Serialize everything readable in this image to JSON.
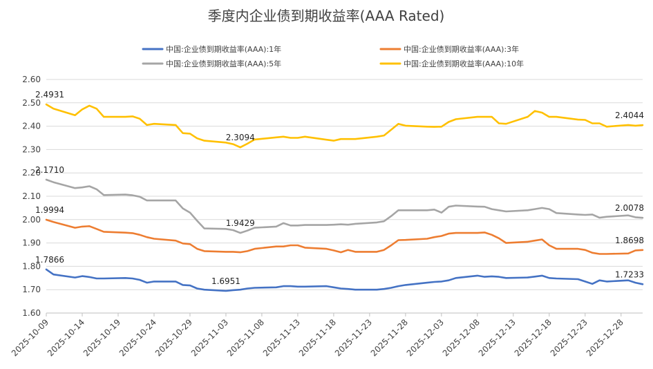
{
  "chart_data": {
    "type": "line",
    "title": "季度内企业债到期收益率(AAA Rated)",
    "xlabel": "",
    "ylabel": "",
    "ylim": [
      1.6,
      2.6
    ],
    "yticks": [
      "1.60",
      "1.70",
      "1.80",
      "1.90",
      "2.00",
      "2.10",
      "2.20",
      "2.30",
      "2.40",
      "2.50",
      "2.60"
    ],
    "x_range": [
      "2025-10-09",
      "2025-12-31"
    ],
    "xticks": [
      "2025-10-09",
      "2025-10-14",
      "2025-10-19",
      "2025-10-24",
      "2025-10-29",
      "2025-11-03",
      "2025-11-08",
      "2025-11-13",
      "2025-11-18",
      "2025-11-23",
      "2025-11-28",
      "2025-12-03",
      "2025-12-08",
      "2025-12-13",
      "2025-12-18",
      "2025-12-23",
      "2025-12-28"
    ],
    "grid": true,
    "legend": "top",
    "series": [
      {
        "name": "中国:企业债到期收益率(AAA):1年",
        "color": "#4472c4",
        "points": [
          [
            "2025-10-09",
            1.7866
          ],
          [
            "2025-10-10",
            1.765
          ],
          [
            "2025-10-13",
            1.752
          ],
          [
            "2025-10-14",
            1.758
          ],
          [
            "2025-10-15",
            1.754
          ],
          [
            "2025-10-16",
            1.748
          ],
          [
            "2025-10-17",
            1.748
          ],
          [
            "2025-10-20",
            1.75
          ],
          [
            "2025-10-21",
            1.748
          ],
          [
            "2025-10-22",
            1.742
          ],
          [
            "2025-10-23",
            1.73
          ],
          [
            "2025-10-24",
            1.735
          ],
          [
            "2025-10-27",
            1.735
          ],
          [
            "2025-10-28",
            1.72
          ],
          [
            "2025-10-29",
            1.718
          ],
          [
            "2025-10-30",
            1.705
          ],
          [
            "2025-10-31",
            1.7
          ],
          [
            "2025-11-03",
            1.6951
          ],
          [
            "2025-11-04",
            1.698
          ],
          [
            "2025-11-05",
            1.7
          ],
          [
            "2025-11-06",
            1.705
          ],
          [
            "2025-11-07",
            1.708
          ],
          [
            "2025-11-10",
            1.71
          ],
          [
            "2025-11-11",
            1.715
          ],
          [
            "2025-11-12",
            1.715
          ],
          [
            "2025-11-13",
            1.713
          ],
          [
            "2025-11-14",
            1.713
          ],
          [
            "2025-11-17",
            1.715
          ],
          [
            "2025-11-18",
            1.71
          ],
          [
            "2025-11-19",
            1.705
          ],
          [
            "2025-11-20",
            1.703
          ],
          [
            "2025-11-21",
            1.7
          ],
          [
            "2025-11-24",
            1.7
          ],
          [
            "2025-11-25",
            1.703
          ],
          [
            "2025-11-26",
            1.708
          ],
          [
            "2025-11-27",
            1.715
          ],
          [
            "2025-11-28",
            1.72
          ],
          [
            "2025-12-01",
            1.73
          ],
          [
            "2025-12-02",
            1.733
          ],
          [
            "2025-12-03",
            1.735
          ],
          [
            "2025-12-04",
            1.74
          ],
          [
            "2025-12-05",
            1.75
          ],
          [
            "2025-12-08",
            1.76
          ],
          [
            "2025-12-09",
            1.755
          ],
          [
            "2025-12-10",
            1.757
          ],
          [
            "2025-12-11",
            1.755
          ],
          [
            "2025-12-12",
            1.75
          ],
          [
            "2025-12-15",
            1.752
          ],
          [
            "2025-12-16",
            1.756
          ],
          [
            "2025-12-17",
            1.76
          ],
          [
            "2025-12-18",
            1.75
          ],
          [
            "2025-12-19",
            1.748
          ],
          [
            "2025-12-22",
            1.745
          ],
          [
            "2025-12-23",
            1.735
          ],
          [
            "2025-12-24",
            1.725
          ],
          [
            "2025-12-25",
            1.74
          ],
          [
            "2025-12-26",
            1.735
          ],
          [
            "2025-12-29",
            1.74
          ],
          [
            "2025-12-30",
            1.73
          ],
          [
            "2025-12-31",
            1.7233
          ]
        ]
      },
      {
        "name": "中国:企业债到期收益率(AAA):3年",
        "color": "#ed7d31",
        "points": [
          [
            "2025-10-09",
            1.9994
          ],
          [
            "2025-10-10",
            1.99
          ],
          [
            "2025-10-13",
            1.965
          ],
          [
            "2025-10-14",
            1.97
          ],
          [
            "2025-10-15",
            1.972
          ],
          [
            "2025-10-16",
            1.96
          ],
          [
            "2025-10-17",
            1.948
          ],
          [
            "2025-10-20",
            1.944
          ],
          [
            "2025-10-21",
            1.942
          ],
          [
            "2025-10-22",
            1.935
          ],
          [
            "2025-10-23",
            1.925
          ],
          [
            "2025-10-24",
            1.918
          ],
          [
            "2025-10-27",
            1.91
          ],
          [
            "2025-10-28",
            1.898
          ],
          [
            "2025-10-29",
            1.895
          ],
          [
            "2025-10-30",
            1.875
          ],
          [
            "2025-10-31",
            1.865
          ],
          [
            "2025-11-03",
            1.862
          ],
          [
            "2025-11-04",
            1.862
          ],
          [
            "2025-11-05",
            1.86
          ],
          [
            "2025-11-06",
            1.865
          ],
          [
            "2025-11-07",
            1.875
          ],
          [
            "2025-11-10",
            1.885
          ],
          [
            "2025-11-11",
            1.885
          ],
          [
            "2025-11-12",
            1.89
          ],
          [
            "2025-11-13",
            1.89
          ],
          [
            "2025-11-14",
            1.88
          ],
          [
            "2025-11-17",
            1.875
          ],
          [
            "2025-11-18",
            1.868
          ],
          [
            "2025-11-19",
            1.86
          ],
          [
            "2025-11-20",
            1.87
          ],
          [
            "2025-11-21",
            1.862
          ],
          [
            "2025-11-24",
            1.862
          ],
          [
            "2025-11-25",
            1.87
          ],
          [
            "2025-11-26",
            1.89
          ],
          [
            "2025-11-27",
            1.912
          ],
          [
            "2025-11-28",
            1.913
          ],
          [
            "2025-12-01",
            1.918
          ],
          [
            "2025-12-02",
            1.925
          ],
          [
            "2025-12-03",
            1.93
          ],
          [
            "2025-12-04",
            1.94
          ],
          [
            "2025-12-05",
            1.943
          ],
          [
            "2025-12-08",
            1.943
          ],
          [
            "2025-12-09",
            1.945
          ],
          [
            "2025-12-10",
            1.935
          ],
          [
            "2025-12-11",
            1.92
          ],
          [
            "2025-12-12",
            1.9
          ],
          [
            "2025-12-15",
            1.905
          ],
          [
            "2025-12-16",
            1.91
          ],
          [
            "2025-12-17",
            1.915
          ],
          [
            "2025-12-18",
            1.89
          ],
          [
            "2025-12-19",
            1.875
          ],
          [
            "2025-12-22",
            1.875
          ],
          [
            "2025-12-23",
            1.87
          ],
          [
            "2025-12-24",
            1.858
          ],
          [
            "2025-12-25",
            1.853
          ],
          [
            "2025-12-26",
            1.853
          ],
          [
            "2025-12-29",
            1.855
          ],
          [
            "2025-12-30",
            1.868
          ],
          [
            "2025-12-31",
            1.8698
          ]
        ]
      },
      {
        "name": "中国:企业债到期收益率(AAA):5年",
        "color": "#a5a5a5",
        "points": [
          [
            "2025-10-09",
            2.171
          ],
          [
            "2025-10-10",
            2.16
          ],
          [
            "2025-10-13",
            2.135
          ],
          [
            "2025-10-14",
            2.138
          ],
          [
            "2025-10-15",
            2.143
          ],
          [
            "2025-10-16",
            2.13
          ],
          [
            "2025-10-17",
            2.105
          ],
          [
            "2025-10-20",
            2.107
          ],
          [
            "2025-10-21",
            2.104
          ],
          [
            "2025-10-22",
            2.098
          ],
          [
            "2025-10-23",
            2.082
          ],
          [
            "2025-10-24",
            2.082
          ],
          [
            "2025-10-27",
            2.082
          ],
          [
            "2025-10-28",
            2.048
          ],
          [
            "2025-10-29",
            2.03
          ],
          [
            "2025-10-30",
            1.995
          ],
          [
            "2025-10-31",
            1.962
          ],
          [
            "2025-11-03",
            1.96
          ],
          [
            "2025-11-04",
            1.955
          ],
          [
            "2025-11-05",
            1.9429
          ],
          [
            "2025-11-06",
            1.953
          ],
          [
            "2025-11-07",
            1.965
          ],
          [
            "2025-11-10",
            1.97
          ],
          [
            "2025-11-11",
            1.985
          ],
          [
            "2025-11-12",
            1.975
          ],
          [
            "2025-11-13",
            1.975
          ],
          [
            "2025-11-14",
            1.977
          ],
          [
            "2025-11-17",
            1.977
          ],
          [
            "2025-11-18",
            1.978
          ],
          [
            "2025-11-19",
            1.98
          ],
          [
            "2025-11-20",
            1.978
          ],
          [
            "2025-11-21",
            1.982
          ],
          [
            "2025-11-24",
            1.988
          ],
          [
            "2025-11-25",
            1.993
          ],
          [
            "2025-11-26",
            2.015
          ],
          [
            "2025-11-27",
            2.04
          ],
          [
            "2025-11-28",
            2.04
          ],
          [
            "2025-12-01",
            2.04
          ],
          [
            "2025-12-02",
            2.043
          ],
          [
            "2025-12-03",
            2.03
          ],
          [
            "2025-12-04",
            2.055
          ],
          [
            "2025-12-05",
            2.06
          ],
          [
            "2025-12-08",
            2.056
          ],
          [
            "2025-12-09",
            2.055
          ],
          [
            "2025-12-10",
            2.045
          ],
          [
            "2025-12-11",
            2.04
          ],
          [
            "2025-12-12",
            2.035
          ],
          [
            "2025-12-15",
            2.04
          ],
          [
            "2025-12-16",
            2.045
          ],
          [
            "2025-12-17",
            2.05
          ],
          [
            "2025-12-18",
            2.045
          ],
          [
            "2025-12-19",
            2.028
          ],
          [
            "2025-12-22",
            2.022
          ],
          [
            "2025-12-23",
            2.02
          ],
          [
            "2025-12-24",
            2.022
          ],
          [
            "2025-12-25",
            2.008
          ],
          [
            "2025-12-26",
            2.012
          ],
          [
            "2025-12-29",
            2.018
          ],
          [
            "2025-12-30",
            2.01
          ],
          [
            "2025-12-31",
            2.0078
          ]
        ]
      },
      {
        "name": "中国:企业债到期收益率(AAA):10年",
        "color": "#ffc000",
        "points": [
          [
            "2025-10-09",
            2.4931
          ],
          [
            "2025-10-10",
            2.475
          ],
          [
            "2025-10-13",
            2.447
          ],
          [
            "2025-10-14",
            2.472
          ],
          [
            "2025-10-15",
            2.488
          ],
          [
            "2025-10-16",
            2.475
          ],
          [
            "2025-10-17",
            2.44
          ],
          [
            "2025-10-20",
            2.44
          ],
          [
            "2025-10-21",
            2.442
          ],
          [
            "2025-10-22",
            2.432
          ],
          [
            "2025-10-23",
            2.405
          ],
          [
            "2025-10-24",
            2.41
          ],
          [
            "2025-10-27",
            2.405
          ],
          [
            "2025-10-28",
            2.37
          ],
          [
            "2025-10-29",
            2.368
          ],
          [
            "2025-10-30",
            2.348
          ],
          [
            "2025-10-31",
            2.338
          ],
          [
            "2025-11-03",
            2.33
          ],
          [
            "2025-11-04",
            2.323
          ],
          [
            "2025-11-05",
            2.3094
          ],
          [
            "2025-11-06",
            2.325
          ],
          [
            "2025-11-07",
            2.343
          ],
          [
            "2025-11-10",
            2.352
          ],
          [
            "2025-11-11",
            2.355
          ],
          [
            "2025-11-12",
            2.35
          ],
          [
            "2025-11-13",
            2.35
          ],
          [
            "2025-11-14",
            2.355
          ],
          [
            "2025-11-17",
            2.342
          ],
          [
            "2025-11-18",
            2.338
          ],
          [
            "2025-11-19",
            2.345
          ],
          [
            "2025-11-20",
            2.345
          ],
          [
            "2025-11-21",
            2.345
          ],
          [
            "2025-11-24",
            2.355
          ],
          [
            "2025-11-25",
            2.36
          ],
          [
            "2025-11-26",
            2.385
          ],
          [
            "2025-11-27",
            2.41
          ],
          [
            "2025-11-28",
            2.402
          ],
          [
            "2025-12-01",
            2.398
          ],
          [
            "2025-12-02",
            2.397
          ],
          [
            "2025-12-03",
            2.398
          ],
          [
            "2025-12-04",
            2.418
          ],
          [
            "2025-12-05",
            2.43
          ],
          [
            "2025-12-08",
            2.44
          ],
          [
            "2025-12-09",
            2.44
          ],
          [
            "2025-12-10",
            2.44
          ],
          [
            "2025-12-11",
            2.412
          ],
          [
            "2025-12-12",
            2.41
          ],
          [
            "2025-12-15",
            2.44
          ],
          [
            "2025-12-16",
            2.465
          ],
          [
            "2025-12-17",
            2.458
          ],
          [
            "2025-12-18",
            2.44
          ],
          [
            "2025-12-19",
            2.44
          ],
          [
            "2025-12-22",
            2.428
          ],
          [
            "2025-12-23",
            2.427
          ],
          [
            "2025-12-24",
            2.412
          ],
          [
            "2025-12-25",
            2.412
          ],
          [
            "2025-12-26",
            2.398
          ],
          [
            "2025-12-29",
            2.405
          ],
          [
            "2025-12-30",
            2.402
          ],
          [
            "2025-12-31",
            2.4044
          ]
        ]
      }
    ],
    "annotations": [
      {
        "series": 0,
        "date": "2025-10-09",
        "text": "1.7866",
        "pos": "above-right"
      },
      {
        "series": 0,
        "date": "2025-11-03",
        "text": "1.6951",
        "pos": "above"
      },
      {
        "series": 0,
        "date": "2025-12-31",
        "text": "1.7233",
        "pos": "above-left"
      },
      {
        "series": 1,
        "date": "2025-10-09",
        "text": "1.9994",
        "pos": "above-right"
      },
      {
        "series": 1,
        "date": "2025-12-31",
        "text": "1.8698",
        "pos": "above-left"
      },
      {
        "series": 2,
        "date": "2025-10-09",
        "text": "2.1710",
        "pos": "above-right"
      },
      {
        "series": 2,
        "date": "2025-11-05",
        "text": "1.9429",
        "pos": "above"
      },
      {
        "series": 2,
        "date": "2025-12-31",
        "text": "2.0078",
        "pos": "above-left"
      },
      {
        "series": 3,
        "date": "2025-10-09",
        "text": "2.4931",
        "pos": "above-right"
      },
      {
        "series": 3,
        "date": "2025-11-05",
        "text": "2.3094",
        "pos": "above"
      },
      {
        "series": 3,
        "date": "2025-12-31",
        "text": "2.4044",
        "pos": "above-left"
      }
    ]
  }
}
